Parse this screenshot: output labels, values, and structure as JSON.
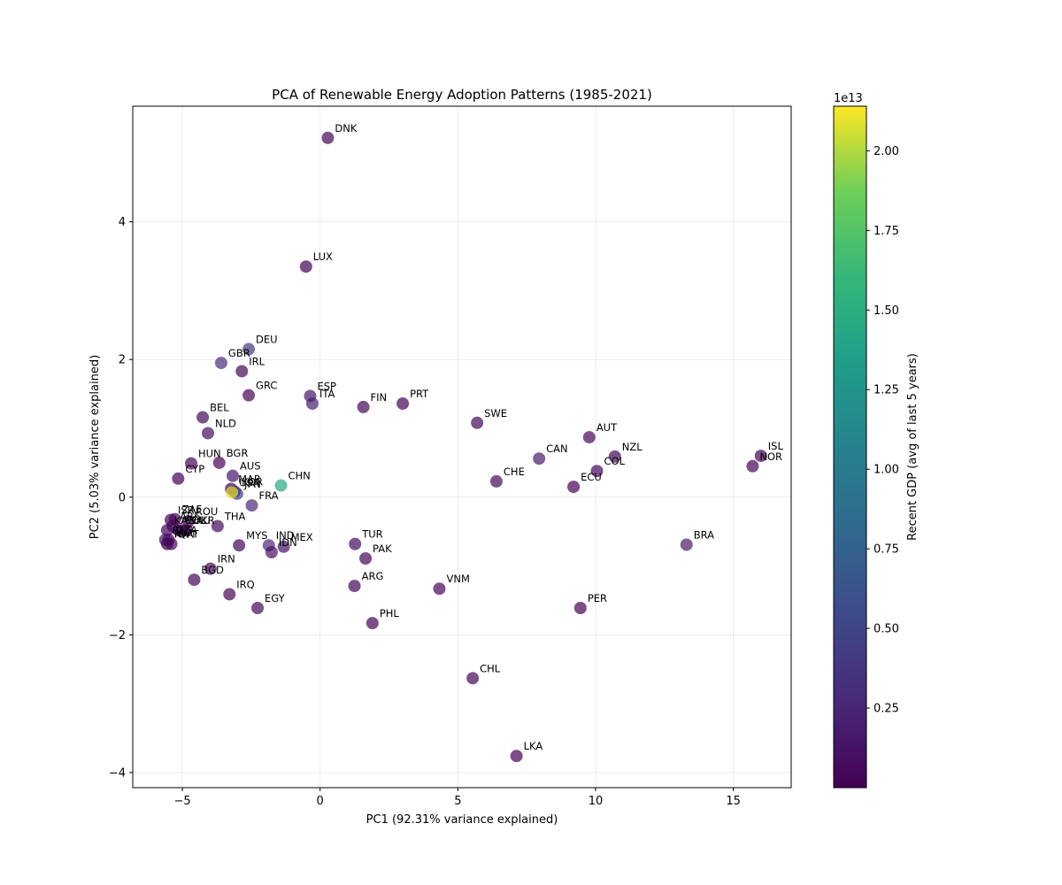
{
  "chart_data": {
    "type": "scatter",
    "title": "PCA of Renewable Energy Adoption Patterns (1985-2021)",
    "xlabel": "PC1 (92.31% variance explained)",
    "ylabel": "PC2 (5.03% variance explained)",
    "xlim": [
      -6.8,
      17.1
    ],
    "ylim": [
      -4.22,
      5.68
    ],
    "xticks": [
      -5,
      0,
      5,
      10,
      15
    ],
    "yticks": [
      -4,
      -2,
      0,
      2,
      4
    ],
    "grid": true,
    "colorbar": {
      "label": "Recent GDP (avg of last 5 years)",
      "offset_label": "1e13",
      "min": 0.0,
      "max": 2.14,
      "ticks": [
        0.25,
        0.5,
        0.75,
        1.0,
        1.25,
        1.5,
        1.75,
        2.0
      ],
      "tick_labels": [
        "0.25",
        "0.50",
        "0.75",
        "1.00",
        "1.25",
        "1.50",
        "1.75",
        "2.00"
      ],
      "colormap": "viridis"
    },
    "points": [
      {
        "label": "DNK",
        "x": 0.28,
        "y": 5.22,
        "gdp": 0.04
      },
      {
        "label": "LUX",
        "x": -0.51,
        "y": 3.35,
        "gdp": 0.01
      },
      {
        "label": "DEU",
        "x": -2.59,
        "y": 2.15,
        "gdp": 0.4
      },
      {
        "label": "GBR",
        "x": -3.59,
        "y": 1.95,
        "gdp": 0.3
      },
      {
        "label": "IRL",
        "x": -2.84,
        "y": 1.83,
        "gdp": 0.04
      },
      {
        "label": "GRC",
        "x": -2.59,
        "y": 1.48,
        "gdp": 0.02
      },
      {
        "label": "ESP",
        "x": -0.36,
        "y": 1.47,
        "gdp": 0.14
      },
      {
        "label": "ITA",
        "x": -0.28,
        "y": 1.36,
        "gdp": 0.21
      },
      {
        "label": "FIN",
        "x": 1.57,
        "y": 1.31,
        "gdp": 0.03
      },
      {
        "label": "PRT",
        "x": 3.0,
        "y": 1.36,
        "gdp": 0.02
      },
      {
        "label": "BEL",
        "x": -4.26,
        "y": 1.16,
        "gdp": 0.05
      },
      {
        "label": "SWE",
        "x": 5.7,
        "y": 1.08,
        "gdp": 0.05
      },
      {
        "label": "NLD",
        "x": -4.07,
        "y": 0.93,
        "gdp": 0.09
      },
      {
        "label": "AUT",
        "x": 9.77,
        "y": 0.87,
        "gdp": 0.04
      },
      {
        "label": "ISL",
        "x": 16.0,
        "y": 0.6,
        "gdp": 0.002
      },
      {
        "label": "NZL",
        "x": 10.7,
        "y": 0.59,
        "gdp": 0.02
      },
      {
        "label": "CAN",
        "x": 7.95,
        "y": 0.56,
        "gdp": 0.18
      },
      {
        "label": "NOR",
        "x": 15.7,
        "y": 0.45,
        "gdp": 0.04
      },
      {
        "label": "COL",
        "x": 10.05,
        "y": 0.38,
        "gdp": 0.03
      },
      {
        "label": "HUN",
        "x": -4.68,
        "y": 0.49,
        "gdp": 0.02
      },
      {
        "label": "BGR",
        "x": -3.66,
        "y": 0.5,
        "gdp": 0.01
      },
      {
        "label": "AUS",
        "x": -3.17,
        "y": 0.31,
        "gdp": 0.14
      },
      {
        "label": "CYP",
        "x": -5.15,
        "y": 0.27,
        "gdp": 0.002
      },
      {
        "label": "CHE",
        "x": 6.4,
        "y": 0.23,
        "gdp": 0.07
      },
      {
        "label": "ECU",
        "x": 9.2,
        "y": 0.15,
        "gdp": 0.01
      },
      {
        "label": "CHN",
        "x": -1.42,
        "y": 0.17,
        "gdp": 1.45
      },
      {
        "label": "MAR",
        "x": -3.23,
        "y": 0.12,
        "gdp": 0.01
      },
      {
        "label": "KOR",
        "x": -3.1,
        "y": 0.08,
        "gdp": 0.17
      },
      {
        "label": "JPN",
        "x": -3.01,
        "y": 0.05,
        "gdp": 0.5
      },
      {
        "label": "USA",
        "x": -3.2,
        "y": 0.07,
        "gdp": 2.1
      },
      {
        "label": "FRA",
        "x": -2.48,
        "y": -0.12,
        "gdp": 0.27
      },
      {
        "label": "ISR",
        "x": -5.42,
        "y": -0.33,
        "gdp": 0.04
      },
      {
        "label": "ZAF",
        "x": -5.27,
        "y": -0.32,
        "gdp": 0.04
      },
      {
        "label": "ROU",
        "x": -4.78,
        "y": -0.35,
        "gdp": 0.03
      },
      {
        "label": "ARE",
        "x": -5.35,
        "y": -0.42,
        "gdp": 0.04
      },
      {
        "label": "THA",
        "x": -3.72,
        "y": -0.42,
        "gdp": 0.05
      },
      {
        "label": "KAZ",
        "x": -5.55,
        "y": -0.48,
        "gdp": 0.02
      },
      {
        "label": "POL",
        "x": -5.15,
        "y": -0.48,
        "gdp": 0.06
      },
      {
        "label": "SAU",
        "x": -5.0,
        "y": -0.48,
        "gdp": 0.08
      },
      {
        "label": "UKR",
        "x": -4.85,
        "y": -0.48,
        "gdp": 0.01
      },
      {
        "label": "DZA",
        "x": -5.5,
        "y": -0.62,
        "gdp": 0.02
      },
      {
        "label": "RUS",
        "x": -5.62,
        "y": -0.62,
        "gdp": 0.15
      },
      {
        "label": "KWT",
        "x": -5.55,
        "y": -0.68,
        "gdp": 0.01
      },
      {
        "label": "QAT",
        "x": -5.4,
        "y": -0.68,
        "gdp": 0.02
      },
      {
        "label": "BRA",
        "x": 13.3,
        "y": -0.69,
        "gdp": 0.19
      },
      {
        "label": "MYS",
        "x": -2.94,
        "y": -0.7,
        "gdp": 0.03
      },
      {
        "label": "IND",
        "x": -1.86,
        "y": -0.7,
        "gdp": 0.28
      },
      {
        "label": "IDN",
        "x": -1.76,
        "y": -0.8,
        "gdp": 0.11
      },
      {
        "label": "MEX",
        "x": -1.32,
        "y": -0.72,
        "gdp": 0.12
      },
      {
        "label": "TUR",
        "x": 1.27,
        "y": -0.68,
        "gdp": 0.07
      },
      {
        "label": "PAK",
        "x": 1.65,
        "y": -0.89,
        "gdp": 0.03
      },
      {
        "label": "IRN",
        "x": -3.98,
        "y": -1.04,
        "gdp": 0.05
      },
      {
        "label": "BGD",
        "x": -4.57,
        "y": -1.2,
        "gdp": 0.03
      },
      {
        "label": "ARG",
        "x": 1.25,
        "y": -1.29,
        "gdp": 0.05
      },
      {
        "label": "VNM",
        "x": 4.33,
        "y": -1.33,
        "gdp": 0.03
      },
      {
        "label": "IRQ",
        "x": -3.29,
        "y": -1.41,
        "gdp": 0.02
      },
      {
        "label": "EGY",
        "x": -2.27,
        "y": -1.61,
        "gdp": 0.03
      },
      {
        "label": "PER",
        "x": 9.45,
        "y": -1.61,
        "gdp": 0.02
      },
      {
        "label": "PHL",
        "x": 1.9,
        "y": -1.83,
        "gdp": 0.03
      },
      {
        "label": "CHL",
        "x": 5.54,
        "y": -2.63,
        "gdp": 0.03
      },
      {
        "label": "LKA",
        "x": 7.13,
        "y": -3.76,
        "gdp": 0.01
      }
    ]
  }
}
